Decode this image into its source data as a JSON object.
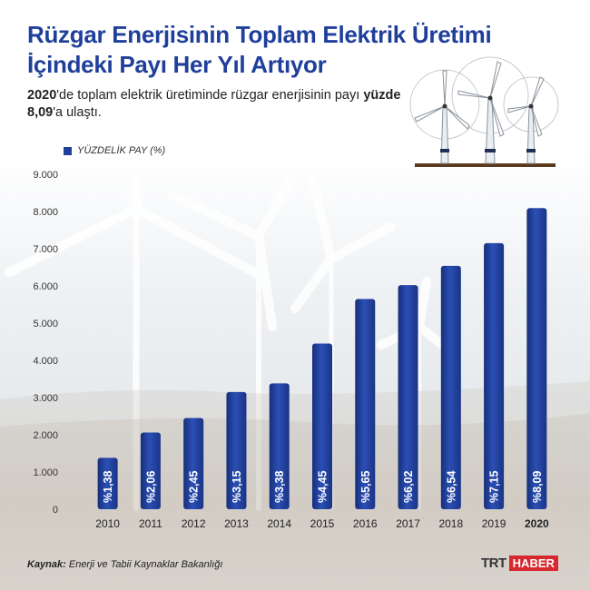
{
  "header": {
    "title": "Rüzgar Enerjisinin Toplam Elektrik Üretimi İçindeki Payı Her Yıl Artıyor",
    "subtitle_year": "2020",
    "subtitle_part1": "'de toplam elektrik üretiminde rüzgar enerjisinin payı ",
    "subtitle_bold": "yüzde 8,09",
    "subtitle_part2": "'a ulaştı."
  },
  "legend": {
    "label": "YÜZDELİK PAY (%)"
  },
  "chart_data": {
    "type": "bar",
    "categories": [
      "2010",
      "2011",
      "2012",
      "2013",
      "2014",
      "2015",
      "2016",
      "2017",
      "2018",
      "2019",
      "2020"
    ],
    "values": [
      1.38,
      2.06,
      2.45,
      3.15,
      3.38,
      4.45,
      5.65,
      6.02,
      6.54,
      7.15,
      8.09
    ],
    "value_labels": [
      "%1,38",
      "%2,06",
      "%2,45",
      "%3,15",
      "%3,38",
      "%4,45",
      "%5,65",
      "%6,02",
      "%6,54",
      "%7,15",
      "%8,09"
    ],
    "yticks": [
      "0",
      "1.000",
      "2.000",
      "3.000",
      "4.000",
      "5.000",
      "6.000",
      "7.000",
      "8.000",
      "9.000"
    ],
    "ylim": [
      0,
      9
    ],
    "highlight_category": "2020",
    "series": [
      {
        "name": "YÜZDELİK PAY (%)",
        "values": [
          1.38,
          2.06,
          2.45,
          3.15,
          3.38,
          4.45,
          5.65,
          6.02,
          6.54,
          7.15,
          8.09
        ]
      }
    ],
    "bar_color": "#1f3f9b",
    "grid": false,
    "legend_position": "top-left"
  },
  "footer": {
    "source_label": "Kaynak:",
    "source_value": "Enerji ve Tabii Kaynaklar Bakanlığı",
    "logo_trt": "TRT",
    "logo_haber": "HABER"
  },
  "colors": {
    "title": "#1f3f9b",
    "bar": "#1f3f9b",
    "logo_red": "#d7282f"
  }
}
